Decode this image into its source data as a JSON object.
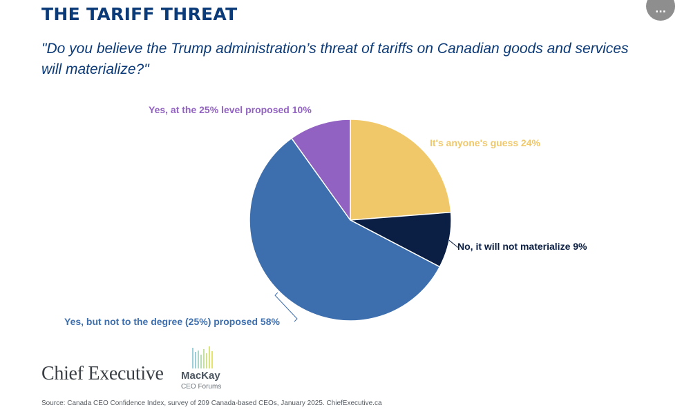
{
  "header": {
    "title": "THE TARIFF THREAT",
    "question": "\"Do you believe the Trump administration’s threat of tariffs on Canadian goods and services will materialize?\"",
    "more_button_label": "..."
  },
  "chart_data": {
    "type": "pie",
    "slices": [
      {
        "label": "It's anyone's guess",
        "value": 24,
        "display": "It's anyone's guess 24%",
        "color": "#f0c869",
        "label_color": "#f0c869"
      },
      {
        "label": "No, it will not materialize",
        "value": 9,
        "display": "No, it will not materialize 9%",
        "color": "#0b1f44",
        "label_color": "#0b1f44"
      },
      {
        "label": "Yes, but not to the degree (25%) proposed",
        "value": 58,
        "display": "Yes, but not to the degree (25%) proposed 58%",
        "color": "#3d6eae",
        "label_color": "#3d6eae"
      },
      {
        "label": "Yes, at the 25% level proposed",
        "value": 10,
        "display": "Yes, at the 25% level proposed 10%",
        "color": "#9262c2",
        "label_color": "#9262c2"
      }
    ]
  },
  "footer": {
    "brand_chief": "Chief Executive",
    "brand_mackay": "MacKay",
    "brand_mackay_sub": "CEO Forums",
    "source": "Source: Canada CEO Confidence Index, survey of 209 Canada-based CEOs, January 2025. ChiefExecutive.ca"
  },
  "icons": {
    "more": "more-horizontal-icon",
    "mackay_logo": "bar-logo-icon"
  }
}
